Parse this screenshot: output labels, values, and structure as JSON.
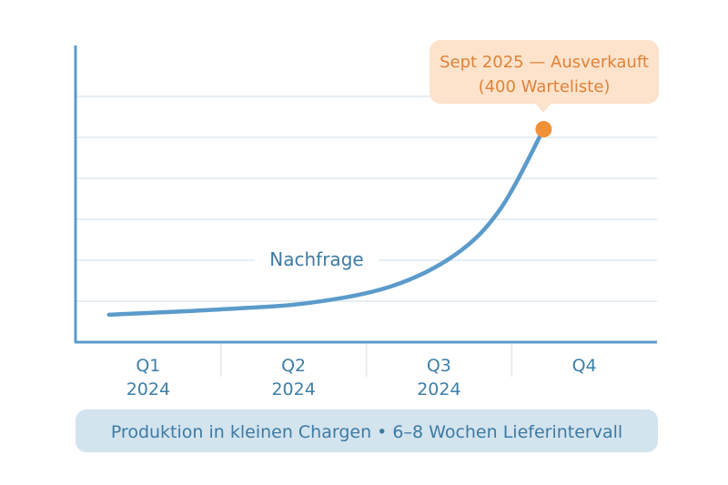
{
  "chart_data": {
    "type": "line",
    "title": "",
    "xlabel": "",
    "ylabel": "",
    "categories": [
      [
        "Q1",
        "2024"
      ],
      [
        "Q2",
        "2024"
      ],
      [
        "Q3",
        "2024"
      ],
      [
        "Q4",
        ""
      ]
    ],
    "xlim": [
      0,
      4
    ],
    "ylim": [
      0,
      7
    ],
    "grid": true,
    "series": [
      {
        "name": "Nachfrage",
        "color": "#5b9bcb",
        "x": [
          0.23,
          1.0,
          1.61,
          2.17,
          2.61,
          2.92,
          3.22
        ],
        "y": [
          0.67,
          0.8,
          0.96,
          1.36,
          2.13,
          3.24,
          5.2
        ]
      }
    ],
    "annotation": {
      "line1": "Sept 2025 — Ausverkauft",
      "line2": "(400 Warteliste)",
      "x": 3.22,
      "y": 5.2,
      "color": "#f0913a",
      "bg": "#fde3cb"
    },
    "footnote": "Produktion in kleinen Chargen • 6–8 Wochen Lieferintervall"
  }
}
